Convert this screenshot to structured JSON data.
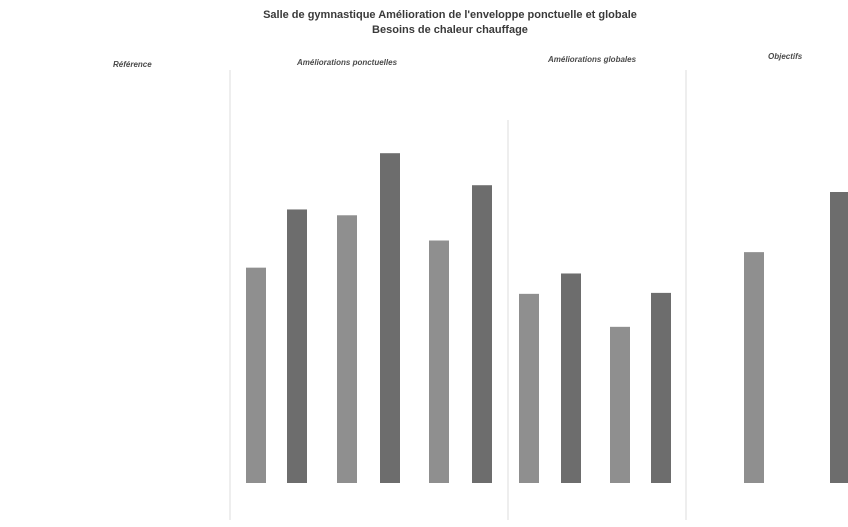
{
  "chart_data": {
    "type": "bar",
    "title": "Salle de gymnastique  Amélioration de l'enveloppe ponctuelle et globale",
    "subtitle": "Besoins de chaleur chauffage",
    "groups": [
      {
        "label": "Référence",
        "bar_indices": []
      },
      {
        "label": "Améliorations ponctuelles",
        "bar_indices": [
          0,
          1,
          2,
          3,
          4,
          5
        ]
      },
      {
        "label": "Améliorations globales",
        "bar_indices": [
          6,
          7,
          8,
          9
        ]
      },
      {
        "label": "Objectifs",
        "bar_indices": [
          10,
          11
        ]
      }
    ],
    "values": [
      222,
      282,
      276,
      340,
      250,
      307,
      195,
      216,
      161,
      196,
      238,
      300
    ],
    "ylim": [
      0,
      400
    ],
    "grid": false,
    "legend": "none",
    "colors": {
      "bar_light": "#8f8f8f",
      "bar_dark": "#6d6d6d",
      "separator": "#dedede"
    }
  }
}
